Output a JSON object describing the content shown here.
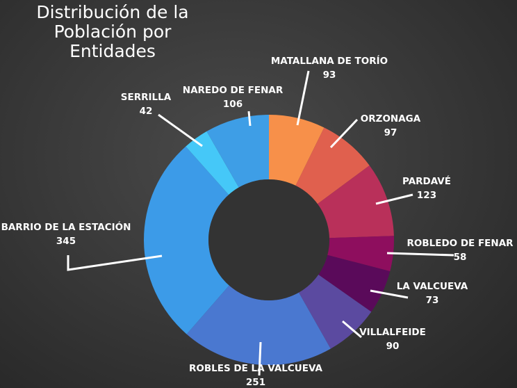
{
  "chart_data": {
    "type": "pie",
    "title_line1": "Distribución de la",
    "title_line2": "Población por Entidades",
    "categories": [
      "MATALLANA DE TORÍO",
      "ORZONAGA",
      "PARDAVÉ",
      "ROBLEDO DE FENAR",
      "LA VALCUEVA",
      "VILLALFEIDE",
      "ROBLES DE LA VALCUEVA",
      "BARRIO DE LA ESTACIÓN",
      "SERRILLA",
      "NAREDO DE FENAR"
    ],
    "values": [
      93,
      97,
      123,
      58,
      73,
      90,
      251,
      345,
      42,
      106
    ],
    "value_labels": [
      "93",
      "97",
      "123",
      "58",
      "73",
      "90",
      "251",
      "345",
      "42",
      "106"
    ],
    "colors": [
      "#f7904a",
      "#e0604e",
      "#b9305a",
      "#8e0e5e",
      "#5a0a5a",
      "#5b4aa0",
      "#4a78d0",
      "#3c9be8",
      "#45c8f8",
      "#3e9ee6"
    ],
    "donut": true,
    "legend": "none"
  }
}
